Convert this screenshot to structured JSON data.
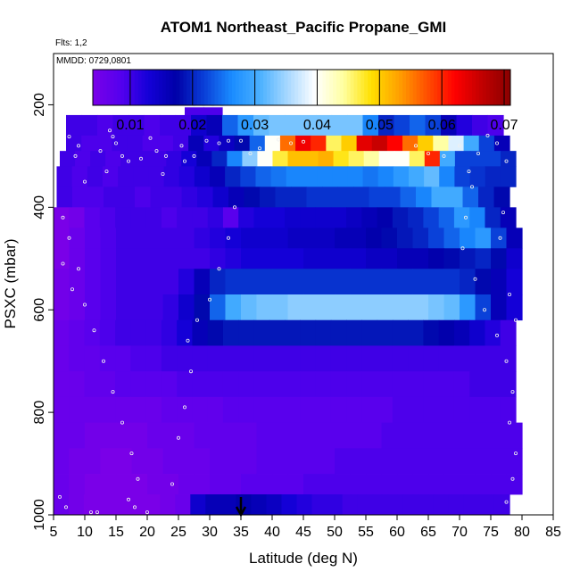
{
  "chart_data": {
    "type": "heatmap",
    "title": "ATOM1 Northeast_Pacific Propane_GMI",
    "flights_note": "Flts: 1,2",
    "date_note": "MMDD: 0729,0801",
    "xlabel": "Latitude (deg N)",
    "ylabel": "PSXC (mbar)",
    "xlim": [
      5,
      85
    ],
    "ylim": [
      1000,
      100
    ],
    "x_ticks": [
      "5",
      "10",
      "15",
      "20",
      "25",
      "30",
      "35",
      "40",
      "45",
      "50",
      "55",
      "60",
      "65",
      "70",
      "75",
      "80",
      "85"
    ],
    "y_ticks": [
      "200",
      "400",
      "600",
      "800",
      "1000"
    ],
    "colorbar": {
      "range": [
        0.004,
        0.071
      ],
      "ticks": [
        "0.01",
        "0.02",
        "0.03",
        "0.04",
        "0.05",
        "0.06",
        "0.07"
      ],
      "colors": [
        "#7a00e8",
        "#5500ee",
        "#1400d8",
        "#0000a8",
        "#0a3fd8",
        "#1a8cff",
        "#4ab0ff",
        "#a8d8ff",
        "#ffffff",
        "#ffffa0",
        "#ffe000",
        "#ffa000",
        "#ff5000",
        "#ff0000",
        "#c00000",
        "#8a0000"
      ]
    },
    "marker": {
      "latitude": 35,
      "label": "arrow"
    },
    "bands": [
      {
        "p_top": 205,
        "p_bot": 225,
        "lat_start": 26,
        "lat_end": 32,
        "values": [
          0.009,
          0.009
        ]
      },
      {
        "p_top": 220,
        "p_bot": 260,
        "lat_start": 7,
        "lat_end": 77,
        "values": [
          0.01,
          0.01,
          0.009,
          0.01,
          0.01,
          0.009,
          0.01,
          0.01,
          0.014,
          0.016,
          0.024,
          0.028,
          0.032,
          0.033,
          0.033,
          0.033,
          0.033,
          0.033,
          0.033,
          0.026,
          0.02,
          0.022,
          0.024,
          0.022,
          0.016,
          0.012,
          0.01,
          0.009
        ]
      },
      {
        "p_top": 260,
        "p_bot": 290,
        "lat_start": 7,
        "lat_end": 78,
        "values": [
          0.01,
          0.009,
          0.009,
          0.01,
          0.01,
          0.009,
          0.009,
          0.01,
          0.016,
          0.012,
          0.015,
          0.018,
          0.024,
          0.04,
          0.056,
          0.063,
          0.06,
          0.046,
          0.05,
          0.064,
          0.066,
          0.062,
          0.056,
          0.05,
          0.044,
          0.038,
          0.03,
          0.022,
          0.016
        ]
      },
      {
        "p_top": 290,
        "p_bot": 320,
        "lat_start": 6,
        "lat_end": 79,
        "values": [
          0.01,
          0.009,
          0.01,
          0.009,
          0.01,
          0.01,
          0.01,
          0.011,
          0.013,
          0.016,
          0.02,
          0.026,
          0.034,
          0.04,
          0.047,
          0.051,
          0.051,
          0.052,
          0.048,
          0.046,
          0.044,
          0.04,
          0.04,
          0.046,
          0.06,
          0.03,
          0.022,
          0.022,
          0.022,
          0.02
        ]
      },
      {
        "p_top": 320,
        "p_bot": 360,
        "lat_start": 5.5,
        "lat_end": 79,
        "values": [
          0.01,
          0.009,
          0.01,
          0.009,
          0.01,
          0.01,
          0.01,
          0.011,
          0.012,
          0.014,
          0.016,
          0.02,
          0.022,
          0.024,
          0.025,
          0.026,
          0.026,
          0.026,
          0.026,
          0.026,
          0.025,
          0.026,
          0.028,
          0.03,
          0.032,
          0.026,
          0.022,
          0.021,
          0.02,
          0.02
        ]
      },
      {
        "p_top": 360,
        "p_bot": 400,
        "lat_start": 5.5,
        "lat_end": 78,
        "values": [
          0.01,
          0.009,
          0.009,
          0.01,
          0.01,
          0.009,
          0.01,
          0.01,
          0.011,
          0.012,
          0.014,
          0.016,
          0.018,
          0.019,
          0.02,
          0.02,
          0.021,
          0.021,
          0.021,
          0.021,
          0.022,
          0.022,
          0.024,
          0.026,
          0.03,
          0.03,
          0.024,
          0.02,
          0.018
        ]
      },
      {
        "p_top": 400,
        "p_bot": 440,
        "lat_start": 5,
        "lat_end": 79,
        "values": [
          0.004,
          0.005,
          0.008,
          0.009,
          0.01,
          0.01,
          0.01,
          0.009,
          0.01,
          0.01,
          0.011,
          0.008,
          0.012,
          0.013,
          0.013,
          0.014,
          0.014,
          0.014,
          0.014,
          0.015,
          0.016,
          0.017,
          0.019,
          0.02,
          0.022,
          0.024,
          0.028,
          0.026,
          0.02,
          0.016
        ]
      },
      {
        "p_top": 440,
        "p_bot": 480,
        "lat_start": 5,
        "lat_end": 80,
        "values": [
          0.004,
          0.006,
          0.008,
          0.009,
          0.01,
          0.01,
          0.01,
          0.01,
          0.01,
          0.011,
          0.012,
          0.013,
          0.014,
          0.014,
          0.014,
          0.015,
          0.015,
          0.015,
          0.016,
          0.016,
          0.017,
          0.018,
          0.019,
          0.02,
          0.022,
          0.024,
          0.026,
          0.028,
          0.022,
          0.016
        ]
      },
      {
        "p_top": 480,
        "p_bot": 520,
        "lat_start": 5,
        "lat_end": 80,
        "values": [
          0.004,
          0.006,
          0.008,
          0.009,
          0.01,
          0.01,
          0.01,
          0.01,
          0.01,
          0.01,
          0.011,
          0.012,
          0.013,
          0.013,
          0.013,
          0.013,
          0.014,
          0.014,
          0.014,
          0.014,
          0.015,
          0.015,
          0.016,
          0.016,
          0.017,
          0.018,
          0.019,
          0.02,
          0.018,
          0.014
        ]
      },
      {
        "p_top": 520,
        "p_bot": 570,
        "lat_start": 5,
        "lat_end": 80,
        "values": [
          0.005,
          0.006,
          0.008,
          0.009,
          0.01,
          0.01,
          0.01,
          0.01,
          0.012,
          0.016,
          0.02,
          0.021,
          0.021,
          0.021,
          0.021,
          0.021,
          0.021,
          0.021,
          0.021,
          0.021,
          0.021,
          0.021,
          0.021,
          0.021,
          0.021,
          0.021,
          0.02,
          0.018,
          0.016,
          0.013
        ]
      },
      {
        "p_top": 570,
        "p_bot": 620,
        "lat_start": 5,
        "lat_end": 80,
        "values": [
          0.005,
          0.006,
          0.008,
          0.009,
          0.01,
          0.01,
          0.01,
          0.011,
          0.014,
          0.018,
          0.024,
          0.03,
          0.032,
          0.033,
          0.033,
          0.034,
          0.034,
          0.034,
          0.034,
          0.034,
          0.034,
          0.034,
          0.034,
          0.034,
          0.033,
          0.032,
          0.028,
          0.022,
          0.016,
          0.013
        ]
      },
      {
        "p_top": 620,
        "p_bot": 670,
        "lat_start": 5,
        "lat_end": 79,
        "values": [
          0.006,
          0.007,
          0.008,
          0.009,
          0.01,
          0.01,
          0.01,
          0.011,
          0.013,
          0.016,
          0.018,
          0.019,
          0.019,
          0.019,
          0.019,
          0.019,
          0.019,
          0.019,
          0.019,
          0.019,
          0.019,
          0.019,
          0.019,
          0.019,
          0.018,
          0.017,
          0.016,
          0.014,
          0.012,
          0.01
        ]
      },
      {
        "p_top": 670,
        "p_bot": 720,
        "lat_start": 5,
        "lat_end": 79,
        "values": [
          0.006,
          0.007,
          0.007,
          0.008,
          0.008,
          0.009,
          0.009,
          0.01,
          0.01,
          0.01,
          0.01,
          0.01,
          0.01,
          0.01,
          0.01,
          0.01,
          0.01,
          0.01,
          0.01,
          0.01,
          0.01,
          0.01,
          0.01,
          0.01,
          0.01,
          0.01,
          0.01,
          0.01,
          0.01,
          0.01
        ]
      },
      {
        "p_top": 720,
        "p_bot": 770,
        "lat_start": 5,
        "lat_end": 79,
        "values": [
          0.006,
          0.006,
          0.007,
          0.007,
          0.008,
          0.008,
          0.008,
          0.008,
          0.009,
          0.009,
          0.009,
          0.009,
          0.009,
          0.009,
          0.009,
          0.009,
          0.009,
          0.009,
          0.009,
          0.009,
          0.009,
          0.009,
          0.009,
          0.009,
          0.009,
          0.009,
          0.009,
          0.01,
          0.01,
          0.01
        ]
      },
      {
        "p_top": 770,
        "p_bot": 820,
        "lat_start": 5,
        "lat_end": 79,
        "values": [
          0.006,
          0.006,
          0.006,
          0.006,
          0.006,
          0.006,
          0.006,
          0.007,
          0.007,
          0.007,
          0.007,
          0.008,
          0.008,
          0.008,
          0.008,
          0.008,
          0.008,
          0.008,
          0.008,
          0.008,
          0.008,
          0.008,
          0.009,
          0.009,
          0.009,
          0.009,
          0.009,
          0.009,
          0.009,
          0.009
        ]
      },
      {
        "p_top": 820,
        "p_bot": 870,
        "lat_start": 5,
        "lat_end": 80,
        "values": [
          0.006,
          0.006,
          0.005,
          0.005,
          0.005,
          0.005,
          0.006,
          0.006,
          0.006,
          0.007,
          0.007,
          0.007,
          0.007,
          0.008,
          0.008,
          0.008,
          0.008,
          0.008,
          0.008,
          0.008,
          0.008,
          0.009,
          0.009,
          0.009,
          0.009,
          0.009,
          0.009,
          0.009,
          0.009,
          0.009
        ]
      },
      {
        "p_top": 870,
        "p_bot": 920,
        "lat_start": 5,
        "lat_end": 80,
        "values": [
          0.006,
          0.005,
          0.005,
          0.004,
          0.004,
          0.005,
          0.005,
          0.006,
          0.006,
          0.006,
          0.007,
          0.007,
          0.007,
          0.008,
          0.008,
          0.008,
          0.008,
          0.008,
          0.009,
          0.009,
          0.009,
          0.009,
          0.009,
          0.009,
          0.009,
          0.009,
          0.009,
          0.009,
          0.009,
          0.009
        ]
      },
      {
        "p_top": 920,
        "p_bot": 960,
        "lat_start": 5,
        "lat_end": 80,
        "values": [
          0.006,
          0.005,
          0.004,
          0.004,
          0.004,
          0.004,
          0.005,
          0.005,
          0.006,
          0.006,
          0.007,
          0.007,
          0.008,
          0.008,
          0.008,
          0.008,
          0.009,
          0.009,
          0.009,
          0.009,
          0.009,
          0.009,
          0.009,
          0.009,
          0.009,
          0.009,
          0.009,
          0.009,
          0.009,
          0.009
        ]
      },
      {
        "p_top": 960,
        "p_bot": 1000,
        "lat_start": 5,
        "lat_end": 78,
        "values": [
          0.006,
          0.005,
          0.004,
          0.004,
          0.004,
          0.004,
          0.004,
          0.005,
          0.006,
          0.014,
          0.016,
          0.016,
          0.017,
          0.016,
          0.015,
          0.013,
          0.012,
          0.011,
          0.011,
          0.01,
          0.01,
          0.01,
          0.01,
          0.01,
          0.01,
          0.01,
          0.01,
          0.01,
          0.01,
          0.01
        ]
      }
    ],
    "observation_points": [
      [
        7.5,
        262
      ],
      [
        9,
        280
      ],
      [
        8.5,
        300
      ],
      [
        10,
        350
      ],
      [
        12.5,
        290
      ],
      [
        13.5,
        330
      ],
      [
        14,
        250
      ],
      [
        14.5,
        262
      ],
      [
        15,
        275
      ],
      [
        16,
        300
      ],
      [
        17,
        310
      ],
      [
        19,
        305
      ],
      [
        20.5,
        265
      ],
      [
        21.5,
        290
      ],
      [
        22.5,
        335
      ],
      [
        23,
        300
      ],
      [
        25.5,
        280
      ],
      [
        26,
        310
      ],
      [
        27.5,
        300
      ],
      [
        29.5,
        270
      ],
      [
        31.5,
        275
      ],
      [
        33,
        270
      ],
      [
        35,
        270
      ],
      [
        36.5,
        295
      ],
      [
        38,
        285
      ],
      [
        41,
        268
      ],
      [
        43,
        275
      ],
      [
        45,
        272
      ],
      [
        63,
        280
      ],
      [
        65,
        295
      ],
      [
        67.5,
        300
      ],
      [
        68.5,
        265
      ],
      [
        70,
        280
      ],
      [
        71.5,
        330
      ],
      [
        73,
        295
      ],
      [
        74.5,
        260
      ],
      [
        76,
        275
      ],
      [
        77.5,
        310
      ],
      [
        27.5,
        200
      ],
      [
        29,
        200
      ],
      [
        30.5,
        200
      ],
      [
        32,
        200
      ],
      [
        6.5,
        420
      ],
      [
        7.5,
        460
      ],
      [
        9,
        520
      ],
      [
        10,
        590
      ],
      [
        11.5,
        640
      ],
      [
        13,
        700
      ],
      [
        14.5,
        760
      ],
      [
        16,
        820
      ],
      [
        17.5,
        880
      ],
      [
        18.5,
        930
      ],
      [
        17,
        970
      ],
      [
        18,
        985
      ],
      [
        20,
        995
      ],
      [
        24,
        940
      ],
      [
        25,
        850
      ],
      [
        26,
        790
      ],
      [
        27,
        720
      ],
      [
        26.5,
        660
      ],
      [
        28,
        620
      ],
      [
        30,
        580
      ],
      [
        31.5,
        520
      ],
      [
        33,
        460
      ],
      [
        34,
        400
      ],
      [
        6,
        965
      ],
      [
        7,
        985
      ],
      [
        11,
        995
      ],
      [
        12,
        995
      ],
      [
        6.5,
        510
      ],
      [
        8,
        560
      ],
      [
        72,
        360
      ],
      [
        71,
        420
      ],
      [
        70.5,
        480
      ],
      [
        72.5,
        540
      ],
      [
        74,
        600
      ],
      [
        76,
        650
      ],
      [
        77.5,
        700
      ],
      [
        78.5,
        760
      ],
      [
        78,
        820
      ],
      [
        79,
        880
      ],
      [
        78.5,
        930
      ],
      [
        77.5,
        975
      ],
      [
        76.5,
        460
      ],
      [
        77,
        410
      ],
      [
        78,
        570
      ],
      [
        79,
        620
      ]
    ]
  }
}
